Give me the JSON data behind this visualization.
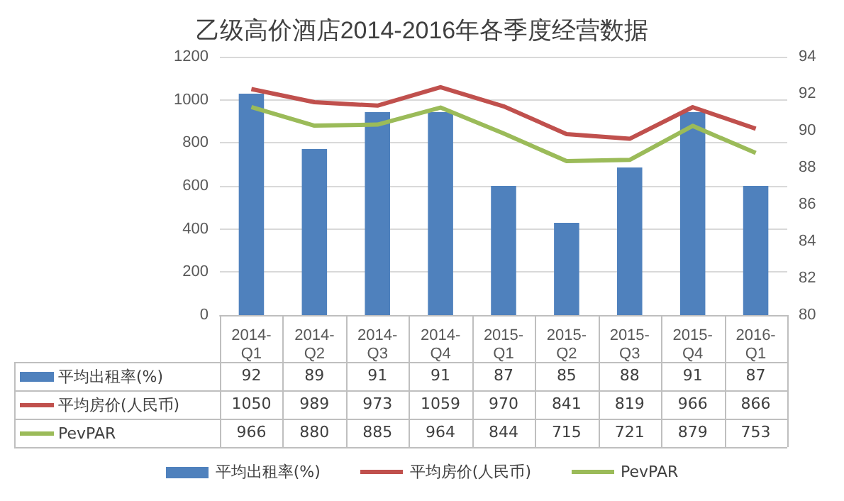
{
  "chart_data": {
    "type": "line",
    "title": "乙级高价酒店2014-2016年各季度经营数据",
    "categories": [
      "2014-Q1",
      "2014-Q2",
      "2014-Q3",
      "2014-Q4",
      "2015-Q1",
      "2015-Q2",
      "2015-Q3",
      "2015-Q4",
      "2016-Q1"
    ],
    "series": [
      {
        "name": "平均出租率(%)",
        "type": "bar",
        "axis": "y2",
        "color": "#4f81bd",
        "values": [
          92,
          89,
          91,
          91,
          87,
          85,
          88,
          91,
          87
        ]
      },
      {
        "name": "平均房价(人民币)",
        "color": "#c0504d",
        "values": [
          1050,
          989,
          973,
          1059,
          970,
          841,
          819,
          966,
          866
        ]
      },
      {
        "name": "PevPAR",
        "color": "#9bbb59",
        "values": [
          966,
          880,
          885,
          964,
          844,
          715,
          721,
          879,
          753
        ]
      }
    ],
    "ylim": [
      0,
      1200
    ],
    "yticks": [
      0,
      200,
      400,
      600,
      800,
      1000,
      1200
    ],
    "y2lim": [
      80,
      94
    ],
    "y2ticks": [
      80,
      82,
      84,
      86,
      88,
      90,
      92,
      94
    ],
    "grid": "y",
    "legend": "bottom",
    "marker": "none",
    "data_labels": true
  }
}
